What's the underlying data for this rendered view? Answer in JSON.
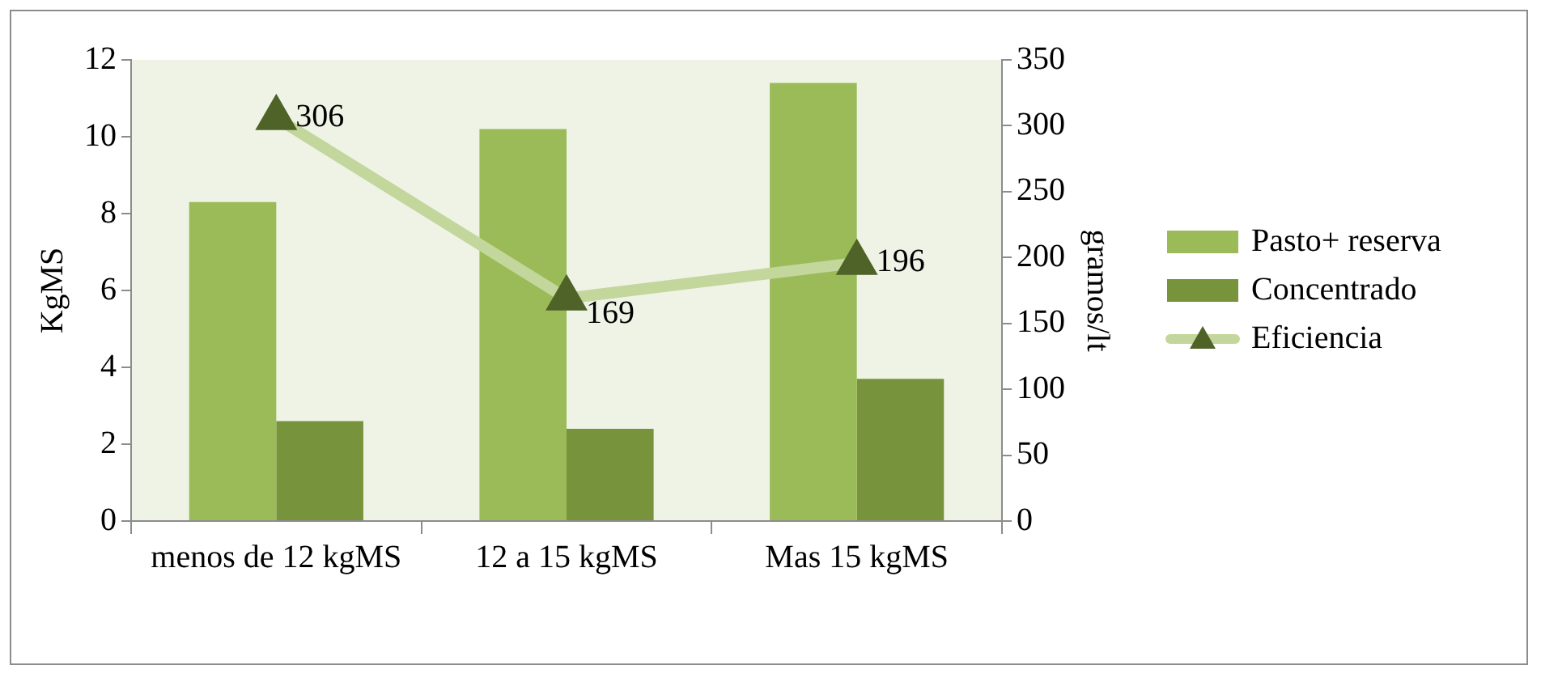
{
  "chart_data": {
    "type": "bar",
    "ylabel": "KgMS",
    "y2label": "gramos/lt",
    "categories": [
      "menos de 12 kgMS",
      "12 a 15 kgMS",
      "Mas 15 kgMS"
    ],
    "series": [
      {
        "name": "Pasto+ reserva",
        "color": "#9bbb59",
        "values": [
          8.3,
          10.2,
          11.4
        ]
      },
      {
        "name": "Concentrado",
        "color": "#77933c",
        "values": [
          2.6,
          2.4,
          3.7
        ]
      },
      {
        "name": "Eficiencia",
        "type": "line",
        "axis": "y2",
        "color": "#c3d69b",
        "marker": "triangle",
        "values": [
          306,
          169,
          196
        ],
        "value_labels": [
          "306",
          "169",
          "196"
        ]
      }
    ],
    "ylim": [
      0,
      12
    ],
    "yticks": [
      0,
      2,
      4,
      6,
      8,
      10,
      12
    ],
    "y2lim": [
      0,
      350
    ],
    "y2ticks": [
      0,
      50,
      100,
      150,
      200,
      250,
      300,
      350
    ],
    "grid": false,
    "legend": "right"
  }
}
